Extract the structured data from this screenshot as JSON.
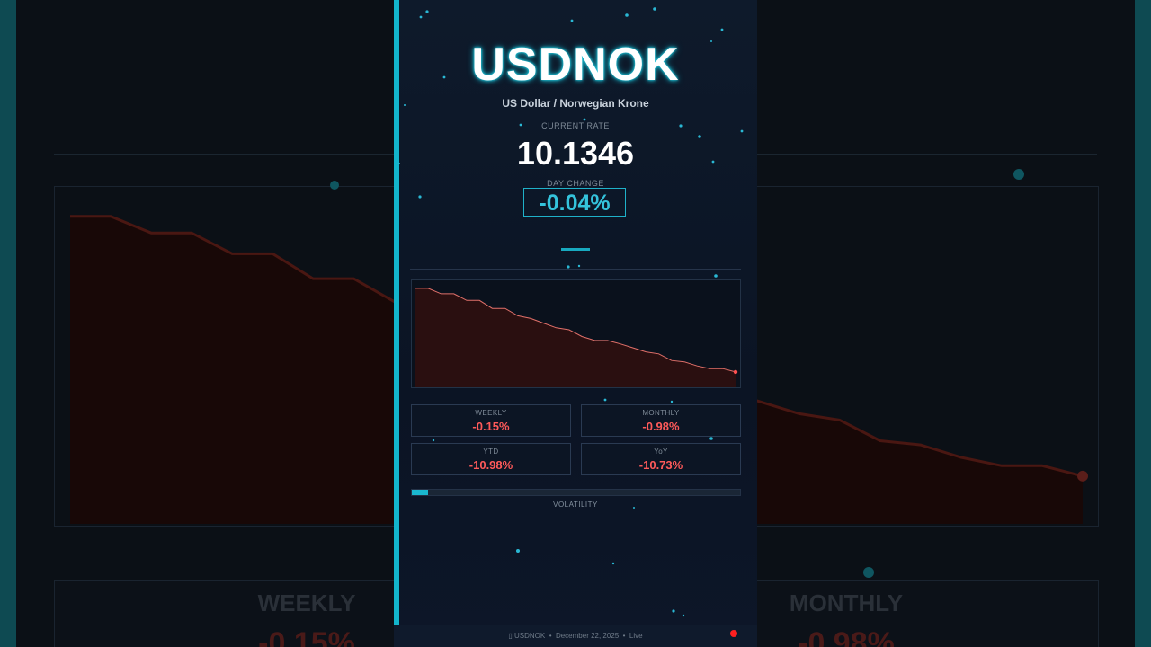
{
  "ticker": "USDNOK",
  "pair_name": "US Dollar / Norwegian Krone",
  "current_rate_label": "CURRENT RATE",
  "current_rate": "10.1346",
  "day_change_label": "DAY CHANGE",
  "day_change": "-0.04%",
  "stats": [
    {
      "label": "WEEKLY",
      "value": "-0.15%"
    },
    {
      "label": "MONTHLY",
      "value": "-0.98%"
    },
    {
      "label": "YTD",
      "value": "-10.98%"
    },
    {
      "label": "YoY",
      "value": "-10.73%"
    }
  ],
  "volatility_label": "VOLATILITY",
  "volatility_level": 0.05,
  "footer": {
    "ticker": "USDNOK",
    "date": "December 22, 2025",
    "status": "Live"
  },
  "colors": {
    "accent": "#13b5cc",
    "negative": "#ff5a5a",
    "live_dot": "#ff2020"
  },
  "chart_data": {
    "type": "area",
    "title": "",
    "xlabel": "",
    "ylabel": "",
    "grid": false,
    "values": [
      11.38,
      11.38,
      11.3,
      11.3,
      11.2,
      11.2,
      11.08,
      11.08,
      10.97,
      10.93,
      10.86,
      10.79,
      10.76,
      10.66,
      10.6,
      10.6,
      10.55,
      10.49,
      10.43,
      10.4,
      10.3,
      10.28,
      10.22,
      10.18,
      10.18,
      10.13
    ],
    "ylim": [
      9.9,
      11.5
    ]
  },
  "footer_icon": "chart-icon"
}
